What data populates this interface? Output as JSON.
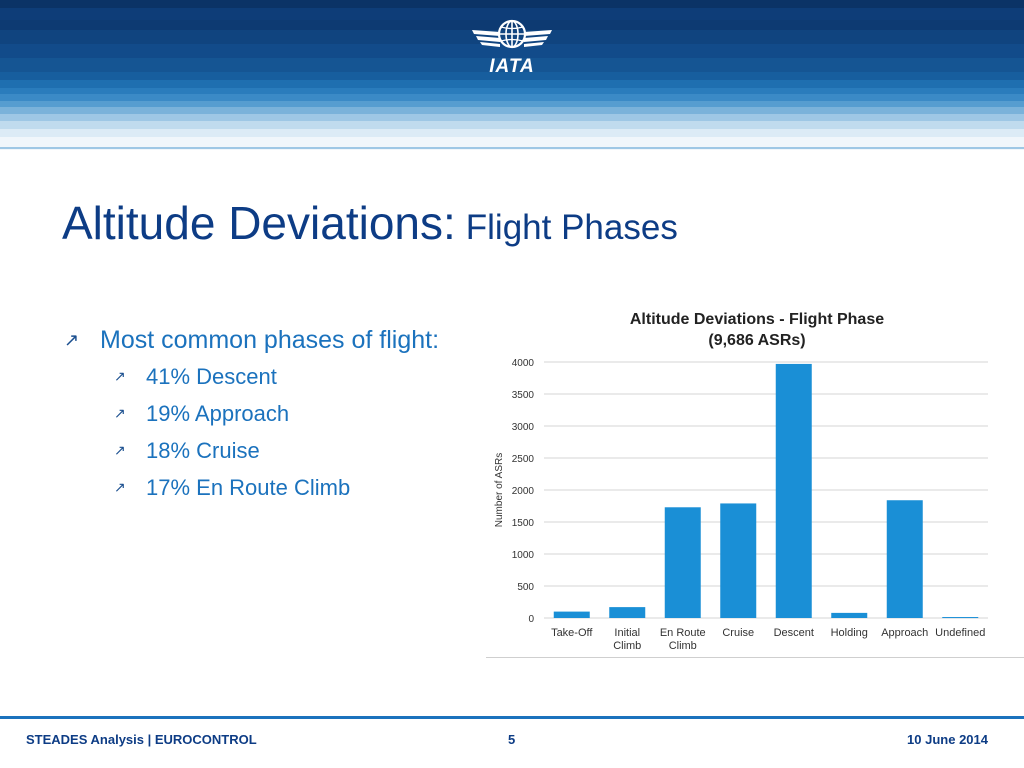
{
  "header": {
    "logo_text": "IATA"
  },
  "slide": {
    "title": "Altitude Deviations:",
    "subtitle": "Flight Phases",
    "bullet_main": "Most common phases of flight:",
    "sub_bullets": [
      "41% Descent",
      "19% Approach",
      "18% Cruise",
      "17% En Route Climb"
    ]
  },
  "chart_data": {
    "type": "bar",
    "title": "Altitude Deviations - Flight Phase",
    "subtitle": "(9,686 ASRs)",
    "ylabel": "Number of ASRs",
    "xlabel": "",
    "ylim": [
      0,
      4000
    ],
    "yticks": [
      0,
      500,
      1000,
      1500,
      2000,
      2500,
      3000,
      3500,
      4000
    ],
    "categories": [
      [
        "Take-Off"
      ],
      [
        "Initial",
        "Climb"
      ],
      [
        "En Route",
        "Climb"
      ],
      [
        "Cruise"
      ],
      [
        "Descent"
      ],
      [
        "Holding"
      ],
      [
        "Approach"
      ],
      [
        "Undefined"
      ]
    ],
    "values": [
      100,
      170,
      1730,
      1790,
      3970,
      80,
      1840,
      15
    ],
    "bar_color": "#1a8fd6",
    "grid": true
  },
  "footer": {
    "left": "STEADES Analysis | EUROCONTROL",
    "page": "5",
    "date": "10 June 2014"
  }
}
